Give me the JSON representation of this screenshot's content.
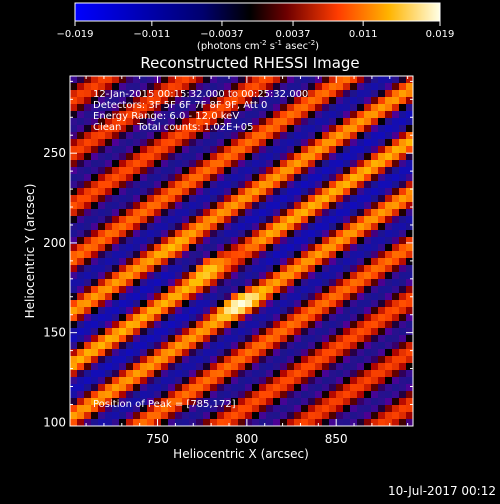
{
  "chart_data": {
    "type": "heatmap",
    "title": "Reconstructed RHESSI Image",
    "xlabel": "Heliocentric X (arcsec)",
    "ylabel": "Heliocentric Y (arcsec)",
    "xlim": [
      701,
      893
    ],
    "ylim": [
      98,
      293
    ],
    "x_ticks": [
      {
        "value": 750,
        "label": "750"
      },
      {
        "value": 800,
        "label": "800"
      },
      {
        "value": 850,
        "label": "850"
      }
    ],
    "y_ticks": [
      {
        "value": 150,
        "label": "150"
      },
      {
        "value": 200,
        "label": "200"
      },
      {
        "value": 250,
        "label": "250"
      }
    ],
    "annotations": [
      "12-Jan-2015 00:15:32.000 to 00:25:32.000",
      "Detectors: 3F 5F 6F 7F 8F 9F, Att 0",
      "Energy Range: 6.0 - 12.0 keV",
      "Clean     Total counts: 1.02E+05"
    ],
    "peak_label": "Position of Peak = [785,172]",
    "peak": [
      785,
      172
    ],
    "colorbar": {
      "min": -0.019,
      "max": 0.019,
      "tick_labels": [
        "-0.019",
        "-0.011",
        "-0.0037",
        "0.0037",
        "0.011",
        "0.019"
      ],
      "unit_parts": [
        "(photons cm",
        "-2",
        " s",
        "-1",
        " asec",
        "-2",
        ")"
      ]
    }
  },
  "footer": {
    "date": "10-Jul-2017 00:12"
  },
  "colors": {
    "background": "#000000",
    "text": "#ffffff",
    "colormap": [
      "#0000ff",
      "#000000",
      "#500096",
      "#b40000",
      "#ff5000",
      "#ffc800",
      "#ffffdc"
    ]
  }
}
